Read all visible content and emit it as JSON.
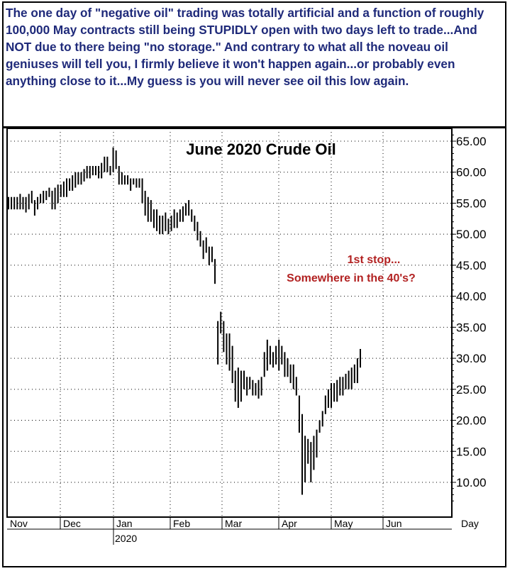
{
  "commentary": "The one day of \"negative oil\" trading was totally artificial and a function of roughly 100,000 May contracts still being STUPIDLY open with two days left to trade...And NOT due to there being \"no storage.\" And contrary to what all the noveau oil geniuses will tell you, I firmly believe it won't happen again...or probably even anything close to it...My guess is you will never see oil this low again.",
  "colors": {
    "commentary_text": "#1f2a7a",
    "annotation_text": "#b22222",
    "bars": "#000000"
  },
  "chart_data": {
    "type": "ohlc",
    "title": "June 2020 Crude Oil",
    "annotation": [
      "1st stop...",
      "Somewhere in the 40's?"
    ],
    "y_ticks": [
      "10.00",
      "15.00",
      "20.00",
      "25.00",
      "30.00",
      "35.00",
      "40.00",
      "45.00",
      "50.00",
      "55.00",
      "60.00",
      "65.00"
    ],
    "ylim": [
      5,
      67
    ],
    "x_months": [
      "Nov",
      "Dec",
      "Jan",
      "Feb",
      "Mar",
      "Apr",
      "May",
      "Jun"
    ],
    "year_label": "2020",
    "period_label": "Day",
    "grid": true,
    "bars": [
      [
        54,
        56
      ],
      [
        54,
        56
      ],
      [
        54,
        56
      ],
      [
        54,
        56
      ],
      [
        54,
        56.5
      ],
      [
        54,
        56
      ],
      [
        53.5,
        56
      ],
      [
        54,
        56.5
      ],
      [
        55,
        57
      ],
      [
        53,
        55.5
      ],
      [
        54,
        56
      ],
      [
        55,
        56.5
      ],
      [
        55,
        57
      ],
      [
        55.5,
        57
      ],
      [
        56,
        57.5
      ],
      [
        54,
        57
      ],
      [
        54,
        57.5
      ],
      [
        55,
        58
      ],
      [
        56,
        58
      ],
      [
        56,
        58.5
      ],
      [
        56,
        59
      ],
      [
        57,
        59
      ],
      [
        57,
        59.5
      ],
      [
        57.5,
        60
      ],
      [
        58,
        60
      ],
      [
        58,
        60
      ],
      [
        58.5,
        60.5
      ],
      [
        59,
        61
      ],
      [
        59,
        61
      ],
      [
        59.5,
        61
      ],
      [
        59.5,
        61
      ],
      [
        59,
        61
      ],
      [
        59,
        61.5
      ],
      [
        60,
        62.5
      ],
      [
        60,
        62.5
      ],
      [
        59.5,
        61
      ],
      [
        60,
        64
      ],
      [
        60.5,
        63.5
      ],
      [
        58,
        61
      ],
      [
        58,
        60
      ],
      [
        58,
        59.5
      ],
      [
        58,
        59.5
      ],
      [
        57,
        59
      ],
      [
        58,
        59
      ],
      [
        57.5,
        59
      ],
      [
        57.5,
        59
      ],
      [
        55,
        59
      ],
      [
        53,
        57
      ],
      [
        52,
        56
      ],
      [
        52,
        55.5
      ],
      [
        51,
        54
      ],
      [
        50.5,
        54
      ],
      [
        50,
        53
      ],
      [
        50,
        53
      ],
      [
        50.5,
        53.5
      ],
      [
        50,
        52.5
      ],
      [
        50.5,
        53
      ],
      [
        51,
        54
      ],
      [
        51,
        53.5
      ],
      [
        52,
        54
      ],
      [
        52,
        54.5
      ],
      [
        53,
        55
      ],
      [
        53,
        55.5
      ],
      [
        52,
        54
      ],
      [
        50.5,
        53
      ],
      [
        49,
        52
      ],
      [
        48,
        50.5
      ],
      [
        46,
        49
      ],
      [
        47,
        49.5
      ],
      [
        45,
        48
      ],
      [
        45.5,
        48
      ],
      [
        42,
        46
      ],
      [
        29,
        36
      ],
      [
        34,
        37.5
      ],
      [
        31,
        36
      ],
      [
        29,
        34
      ],
      [
        28,
        34
      ],
      [
        26,
        32
      ],
      [
        23,
        28
      ],
      [
        22,
        28.5
      ],
      [
        23,
        28
      ],
      [
        25,
        28
      ],
      [
        24,
        27
      ],
      [
        25,
        27
      ],
      [
        24,
        26.5
      ],
      [
        24,
        26
      ],
      [
        23.5,
        26.5
      ],
      [
        24,
        27
      ],
      [
        27,
        31
      ],
      [
        28,
        33
      ],
      [
        29,
        32
      ],
      [
        28.5,
        31
      ],
      [
        29,
        32
      ],
      [
        28,
        33
      ],
      [
        29,
        32
      ],
      [
        27,
        31
      ],
      [
        27,
        30
      ],
      [
        26,
        29
      ],
      [
        25,
        29
      ],
      [
        24,
        27
      ],
      [
        18,
        24
      ],
      [
        8,
        21
      ],
      [
        10,
        17.5
      ],
      [
        13,
        17
      ],
      [
        10,
        16.5
      ],
      [
        12,
        17.5
      ],
      [
        14,
        18.5
      ],
      [
        18,
        20
      ],
      [
        19,
        21.5
      ],
      [
        21,
        24
      ],
      [
        22,
        25
      ],
      [
        22,
        26
      ],
      [
        23,
        26
      ],
      [
        23,
        26.5
      ],
      [
        24,
        27
      ],
      [
        24,
        27
      ],
      [
        25,
        27.5
      ],
      [
        25,
        28
      ],
      [
        25,
        28.5
      ],
      [
        26,
        29
      ],
      [
        26,
        30
      ],
      [
        28.5,
        31.5
      ]
    ]
  }
}
